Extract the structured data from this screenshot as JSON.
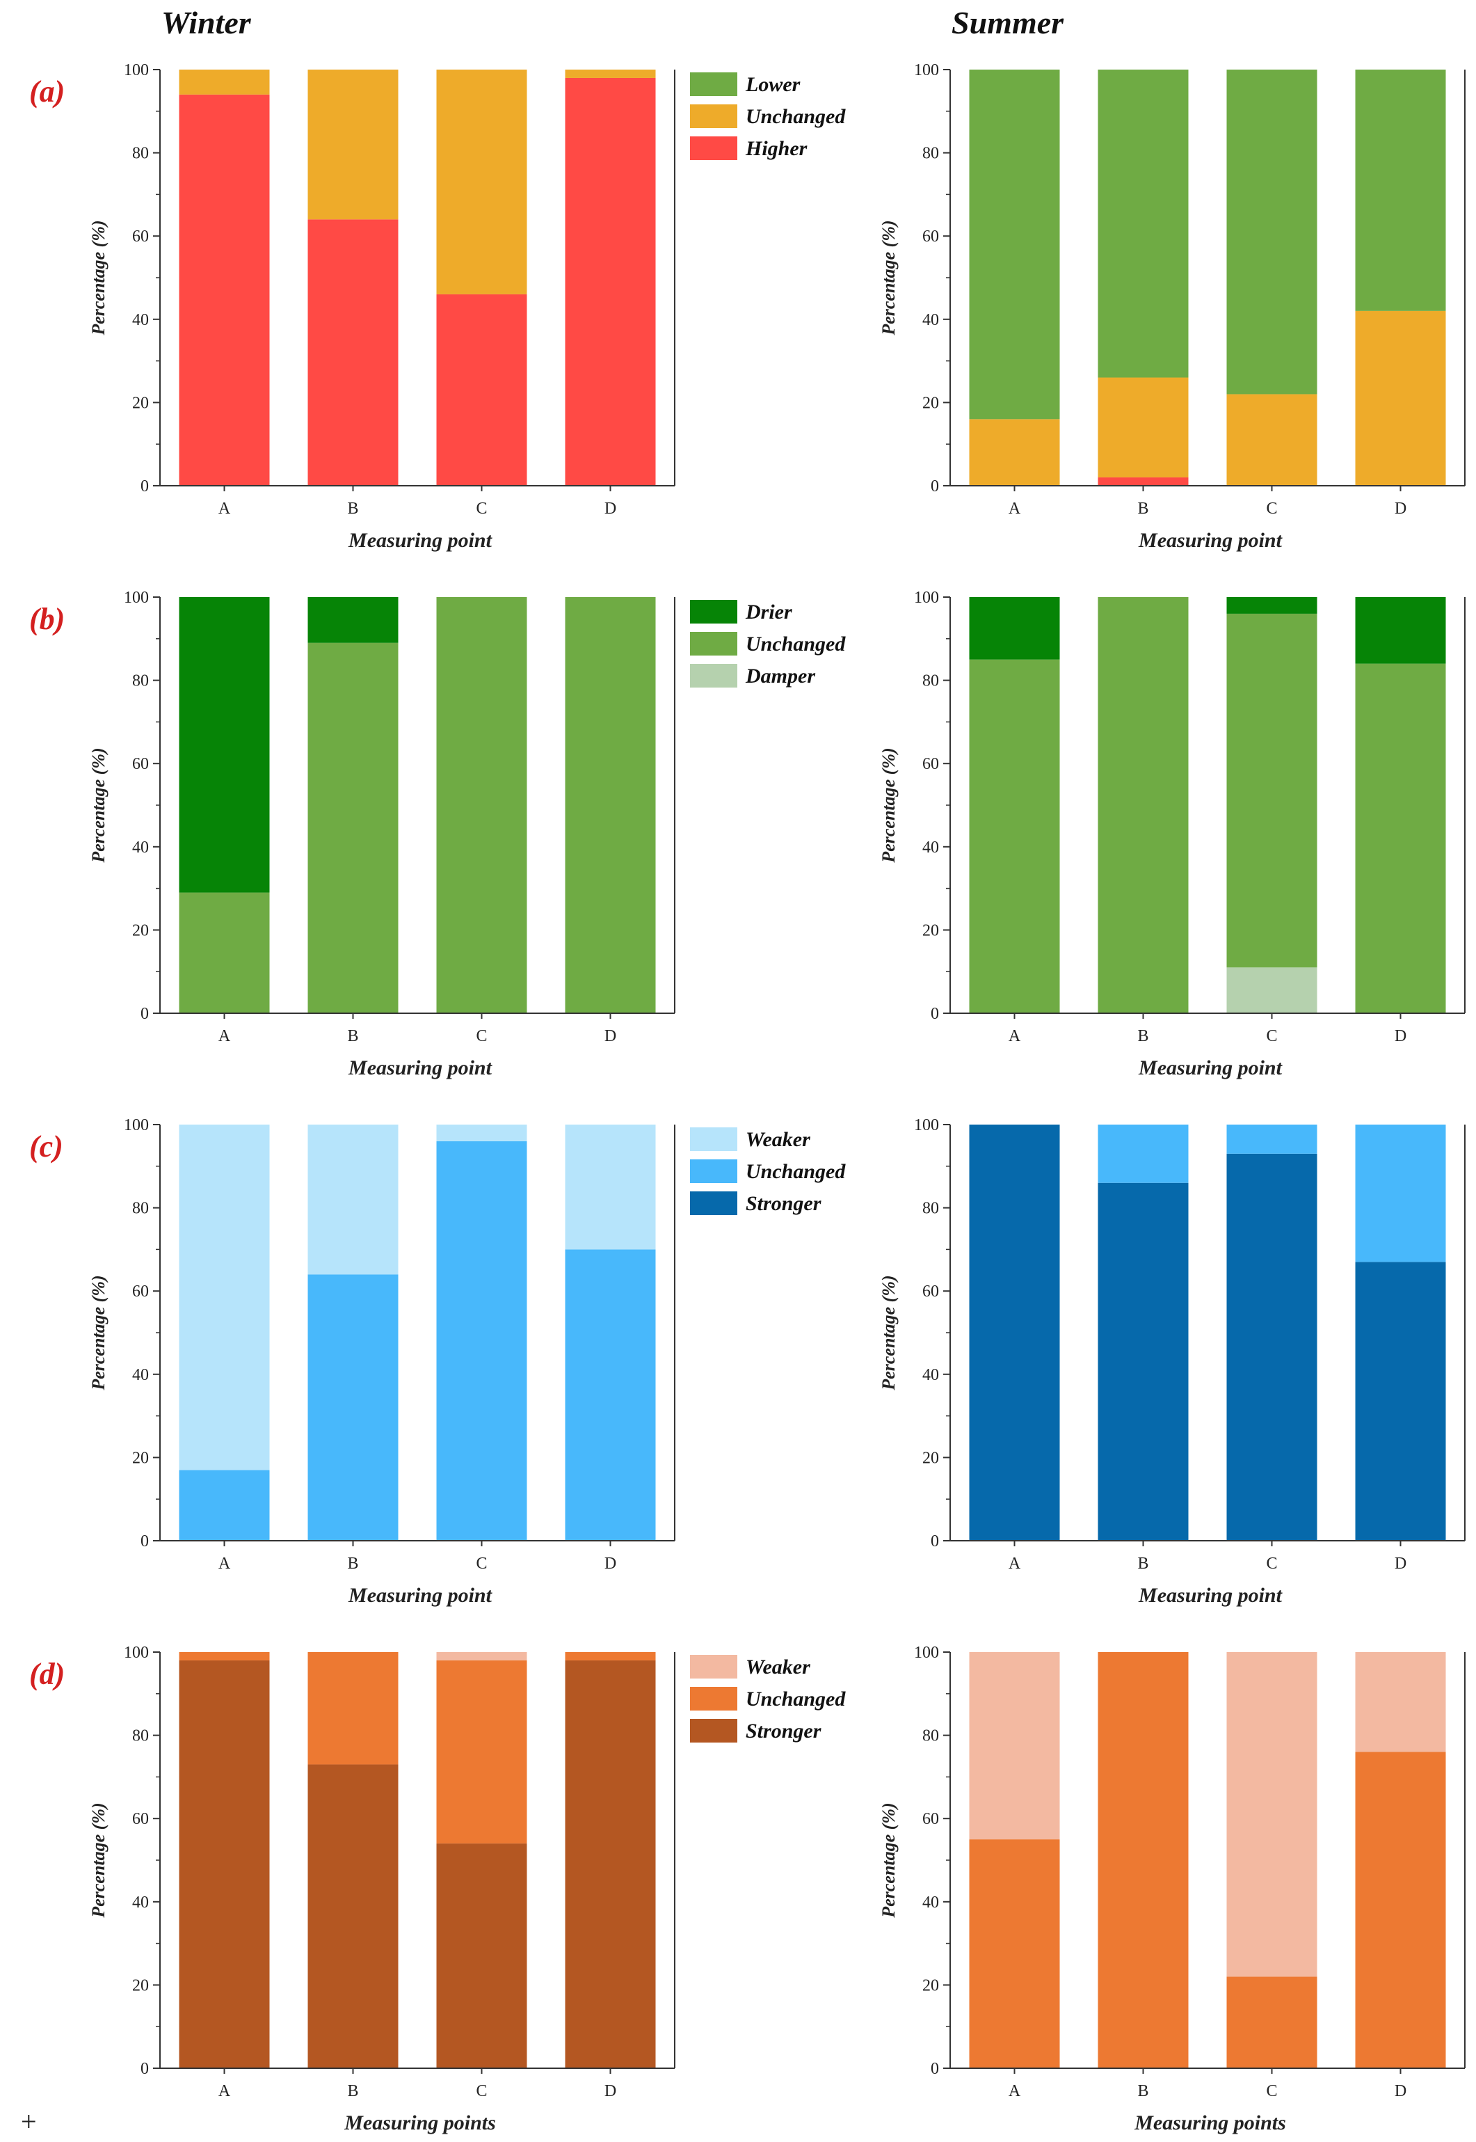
{
  "headers": {
    "winter": "Winter",
    "summer": "Summer"
  },
  "corner_mark": "+",
  "chart_data": [
    {
      "type": "bar",
      "stacked": true,
      "panel": "(a)",
      "season": "Winter",
      "categories": [
        "A",
        "B",
        "C",
        "D"
      ],
      "ylabel": "Percentage (%)",
      "xlabel": "Measuring point",
      "ylim": [
        0,
        100
      ],
      "yticks": [
        "0",
        "20",
        "40",
        "60",
        "80",
        "100"
      ],
      "legend": true,
      "legend_position": "right",
      "series": [
        {
          "name": "Lower",
          "color": "#6fab44",
          "values": [
            0,
            0,
            0,
            0
          ]
        },
        {
          "name": "Unchanged",
          "color": "#eeab2a",
          "values": [
            6,
            36,
            54,
            2
          ]
        },
        {
          "name": "Higher",
          "color": "#ff4a45",
          "values": [
            94,
            64,
            46,
            98
          ]
        }
      ]
    },
    {
      "type": "bar",
      "stacked": true,
      "panel": "(a)",
      "season": "Summer",
      "categories": [
        "A",
        "B",
        "C",
        "D"
      ],
      "ylabel": "Percentage (%)",
      "xlabel": "Measuring point",
      "ylim": [
        0,
        100
      ],
      "yticks": [
        "0",
        "20",
        "40",
        "60",
        "80",
        "100"
      ],
      "legend": false,
      "series": [
        {
          "name": "Lower",
          "color": "#6fab44",
          "values": [
            84,
            74,
            78,
            58
          ]
        },
        {
          "name": "Unchanged",
          "color": "#eeab2a",
          "values": [
            16,
            24,
            22,
            42
          ]
        },
        {
          "name": "Higher",
          "color": "#ff4a45",
          "values": [
            0,
            2,
            0,
            0
          ]
        }
      ]
    },
    {
      "type": "bar",
      "stacked": true,
      "panel": "(b)",
      "season": "Winter",
      "categories": [
        "A",
        "B",
        "C",
        "D"
      ],
      "ylabel": "Percentage (%)",
      "xlabel": "Measuring point",
      "ylim": [
        0,
        100
      ],
      "yticks": [
        "0",
        "20",
        "40",
        "60",
        "80",
        "100"
      ],
      "legend": true,
      "legend_position": "right",
      "series": [
        {
          "name": "Drier",
          "color": "#068406",
          "values": [
            71,
            11,
            0,
            0
          ]
        },
        {
          "name": "Unchanged",
          "color": "#6fab44",
          "values": [
            29,
            89,
            100,
            100
          ]
        },
        {
          "name": "Damper",
          "color": "#b5d1ae",
          "values": [
            0,
            0,
            0,
            0
          ]
        }
      ]
    },
    {
      "type": "bar",
      "stacked": true,
      "panel": "(b)",
      "season": "Summer",
      "categories": [
        "A",
        "B",
        "C",
        "D"
      ],
      "ylabel": "Percentage (%)",
      "xlabel": "Measuring point",
      "ylim": [
        0,
        100
      ],
      "yticks": [
        "0",
        "20",
        "40",
        "60",
        "80",
        "100"
      ],
      "legend": false,
      "series": [
        {
          "name": "Drier",
          "color": "#068406",
          "values": [
            15,
            0,
            4,
            16
          ]
        },
        {
          "name": "Unchanged",
          "color": "#6fab44",
          "values": [
            85,
            100,
            85,
            84
          ]
        },
        {
          "name": "Damper",
          "color": "#b5d1ae",
          "values": [
            0,
            0,
            11,
            0
          ]
        }
      ]
    },
    {
      "type": "bar",
      "stacked": true,
      "panel": "(c)",
      "season": "Winter",
      "categories": [
        "A",
        "B",
        "C",
        "D"
      ],
      "ylabel": "Percentage (%)",
      "xlabel": "Measuring point",
      "ylim": [
        0,
        100
      ],
      "yticks": [
        "0",
        "20",
        "40",
        "60",
        "80",
        "100"
      ],
      "legend": true,
      "legend_position": "right",
      "series": [
        {
          "name": "Weaker",
          "color": "#b6e4fb",
          "values": [
            83,
            36,
            4,
            30
          ]
        },
        {
          "name": "Unchanged",
          "color": "#48b8fb",
          "values": [
            17,
            64,
            96,
            70
          ]
        },
        {
          "name": "Stronger",
          "color": "#0669ab",
          "values": [
            0,
            0,
            0,
            0
          ]
        }
      ]
    },
    {
      "type": "bar",
      "stacked": true,
      "panel": "(c)",
      "season": "Summer",
      "categories": [
        "A",
        "B",
        "C",
        "D"
      ],
      "ylabel": "Percentage (%)",
      "xlabel": "Measuring point",
      "ylim": [
        0,
        100
      ],
      "yticks": [
        "0",
        "20",
        "40",
        "60",
        "80",
        "100"
      ],
      "legend": false,
      "series": [
        {
          "name": "Weaker",
          "color": "#b6e4fb",
          "values": [
            0,
            0,
            0,
            0
          ]
        },
        {
          "name": "Unchanged",
          "color": "#48b8fb",
          "values": [
            0,
            14,
            7,
            33
          ]
        },
        {
          "name": "Stronger",
          "color": "#0669ab",
          "values": [
            100,
            86,
            93,
            67
          ]
        }
      ]
    },
    {
      "type": "bar",
      "stacked": true,
      "panel": "(d)",
      "season": "Winter",
      "categories": [
        "A",
        "B",
        "C",
        "D"
      ],
      "ylabel": "Percentage (%)",
      "xlabel": "Measuring points",
      "ylim": [
        0,
        100
      ],
      "yticks": [
        "0",
        "20",
        "40",
        "60",
        "80",
        "100"
      ],
      "legend": true,
      "legend_position": "right",
      "series": [
        {
          "name": "Weaker",
          "color": "#f3b9a1",
          "values": [
            0,
            0,
            2,
            0
          ]
        },
        {
          "name": "Unchanged",
          "color": "#ed7932",
          "values": [
            2,
            27,
            44,
            2
          ]
        },
        {
          "name": "Stronger",
          "color": "#b45722",
          "values": [
            98,
            73,
            54,
            98
          ]
        }
      ]
    },
    {
      "type": "bar",
      "stacked": true,
      "panel": "(d)",
      "season": "Summer",
      "categories": [
        "A",
        "B",
        "C",
        "D"
      ],
      "ylabel": "Percentage (%)",
      "xlabel": "Measuring points",
      "ylim": [
        0,
        100
      ],
      "yticks": [
        "0",
        "20",
        "40",
        "60",
        "80",
        "100"
      ],
      "legend": false,
      "series": [
        {
          "name": "Weaker",
          "color": "#f3b9a1",
          "values": [
            45,
            0,
            78,
            24
          ]
        },
        {
          "name": "Unchanged",
          "color": "#ed7932",
          "values": [
            55,
            100,
            22,
            76
          ]
        },
        {
          "name": "Stronger",
          "color": "#b45722",
          "values": [
            0,
            0,
            0,
            0
          ]
        }
      ]
    }
  ]
}
